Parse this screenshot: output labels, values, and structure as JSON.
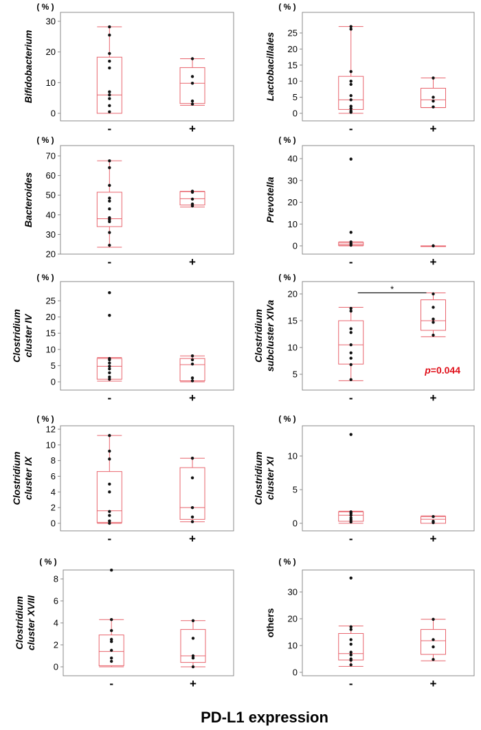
{
  "figure": {
    "xlabel": "PD-L1 expression",
    "categories": [
      "-",
      "+"
    ]
  },
  "colors": {
    "box": "#e8636c",
    "point": "#111111",
    "axis": "#888888",
    "significance": "#e0101a"
  },
  "chart_data": [
    {
      "type": "box",
      "panel": "bifidobacterium",
      "ylabel": "Bifidobacterium",
      "italic": true,
      "unit": "( % )",
      "ylim": [
        0,
        30
      ],
      "yticks": [
        0,
        10,
        20,
        30
      ],
      "groups": [
        {
          "category": "-",
          "points": [
            28.2,
            25.5,
            19.5,
            17.0,
            14.8,
            7.0,
            6.0,
            4.8,
            2.5,
            0.5
          ],
          "min": 0,
          "q1": 0,
          "median": 6.0,
          "q3": 18.3,
          "max": 28.2
        },
        {
          "category": "+",
          "points": [
            17.8,
            12.0,
            9.8,
            4.0,
            3.0
          ],
          "min": 2.6,
          "q1": 3.2,
          "median": 9.8,
          "q3": 14.9,
          "max": 17.8
        }
      ]
    },
    {
      "type": "box",
      "panel": "lactobacillales",
      "ylabel": "Lactobacillales",
      "italic": true,
      "unit": "( % )",
      "ylim": [
        0,
        28
      ],
      "yticks": [
        0,
        5,
        10,
        15,
        20,
        25
      ],
      "groups": [
        {
          "category": "-",
          "points": [
            27.0,
            26.2,
            13.0,
            10.0,
            9.0,
            5.5,
            4.2,
            2.2,
            1.5,
            0.7,
            0.3
          ],
          "min": 0,
          "q1": 1.2,
          "median": 4.2,
          "q3": 11.5,
          "max": 27.0
        },
        {
          "category": "+",
          "points": [
            11.0,
            5.0,
            3.8,
            2.0
          ],
          "min": 1.8,
          "q1": 1.8,
          "median": 4.2,
          "q3": 7.8,
          "max": 11.0
        }
      ]
    },
    {
      "type": "box",
      "panel": "bacteroides",
      "ylabel": "Bacteroides",
      "italic": true,
      "unit": "( % )",
      "ylim": [
        20,
        70
      ],
      "yticks": [
        20,
        30,
        40,
        50,
        60,
        70
      ],
      "groups": [
        {
          "category": "-",
          "points": [
            67.5,
            64.0,
            55.0,
            48.5,
            47.0,
            43.0,
            38.5,
            37.5,
            36.5,
            31.0,
            24.5
          ],
          "min": 23.5,
          "q1": 34.0,
          "median": 38.0,
          "q3": 51.5,
          "max": 67.5
        },
        {
          "category": "+",
          "points": [
            52.0,
            51.5,
            48.0,
            45.5,
            44.5
          ],
          "min": 44.0,
          "q1": 45.0,
          "median": 48.2,
          "q3": 51.8,
          "max": 52.0
        }
      ]
    },
    {
      "type": "box",
      "panel": "prevotella",
      "ylabel": "Prevotella",
      "italic": true,
      "unit": "( % )",
      "ylim": [
        0,
        42
      ],
      "yticks": [
        0,
        10,
        20,
        30,
        40
      ],
      "groups": [
        {
          "category": "-",
          "points": [
            39.8,
            6.2,
            1.8,
            1.0,
            0.3
          ],
          "min": 0,
          "q1": 0.2,
          "median": 0.8,
          "q3": 1.6,
          "max": 1.8
        },
        {
          "category": "+",
          "points": [
            0.0,
            0.0
          ],
          "min": 0,
          "q1": 0,
          "median": 0,
          "q3": 0,
          "max": 0
        }
      ]
    },
    {
      "type": "box",
      "panel": "clostridium-cluster-iv",
      "ylabel": "Clostridium cluster IV",
      "ylabel_lines": [
        "Clostridium",
        "cluster IV"
      ],
      "italic": true,
      "unit": "( % )",
      "ylim": [
        0,
        28
      ],
      "yticks": [
        0,
        5,
        10,
        15,
        20,
        25
      ],
      "groups": [
        {
          "category": "-",
          "points": [
            27.5,
            20.5,
            7.2,
            6.8,
            5.8,
            4.8,
            4.0,
            2.8,
            1.5,
            0.8
          ],
          "min": 0.2,
          "q1": 0.8,
          "median": 4.8,
          "q3": 7.2,
          "max": 7.5
        },
        {
          "category": "+",
          "points": [
            8.0,
            6.8,
            5.5,
            1.2,
            0.3
          ],
          "min": 0,
          "q1": 0.3,
          "median": 5.3,
          "q3": 7.2,
          "max": 8.0
        }
      ]
    },
    {
      "type": "box",
      "panel": "clostridium-subcluster-xiva",
      "ylabel": "Clostridium subcluster XIVa",
      "ylabel_lines": [
        "Clostridium",
        "subcluster XIVa"
      ],
      "italic": true,
      "unit": "( % )",
      "ylim": [
        3,
        21
      ],
      "yticks": [
        5,
        10,
        15,
        20
      ],
      "significance": {
        "marker": "*",
        "p_label": "p=0.044",
        "p_prefix": "p",
        "p_suffix": "=0.044"
      },
      "groups": [
        {
          "category": "-",
          "points": [
            17.3,
            16.8,
            13.5,
            12.8,
            10.5,
            9.0,
            8.0,
            6.8,
            4.0
          ],
          "min": 3.8,
          "q1": 6.9,
          "median": 10.5,
          "q3": 15.0,
          "max": 17.5
        },
        {
          "category": "+",
          "points": [
            20.0,
            17.5,
            15.3,
            14.7,
            12.3
          ],
          "min": 12.0,
          "q1": 13.2,
          "median": 15.0,
          "q3": 18.9,
          "max": 20.2
        }
      ]
    },
    {
      "type": "box",
      "panel": "clostridium-cluster-ix",
      "ylabel": "Clostridium cluster IX",
      "ylabel_lines": [
        "Clostridium",
        "cluster IX"
      ],
      "italic": true,
      "unit": "( % )",
      "ylim": [
        -0.5,
        12
      ],
      "yticks": [
        0,
        2,
        4,
        6,
        8,
        10,
        12
      ],
      "groups": [
        {
          "category": "-",
          "points": [
            11.2,
            9.2,
            8.2,
            5.0,
            4.0,
            1.5,
            1.0,
            0.3,
            0.0
          ],
          "min": 0,
          "q1": 0.1,
          "median": 1.6,
          "q3": 6.6,
          "max": 11.2
        },
        {
          "category": "+",
          "points": [
            8.3,
            5.8,
            2.0,
            0.8,
            0.2
          ],
          "min": 0.2,
          "q1": 0.5,
          "median": 2.0,
          "q3": 7.1,
          "max": 8.3
        }
      ]
    },
    {
      "type": "box",
      "panel": "clostridium-cluster-xi",
      "ylabel": "Clostridium cluster XI",
      "ylabel_lines": [
        "Clostridium",
        "cluster XI"
      ],
      "italic": true,
      "unit": "( % )",
      "ylim": [
        -0.5,
        14
      ],
      "yticks": [
        0,
        5,
        10
      ],
      "groups": [
        {
          "category": "-",
          "points": [
            13.2,
            1.7,
            1.5,
            1.2,
            0.8,
            0.5,
            0.2
          ],
          "min": 0,
          "q1": 0.3,
          "median": 1.2,
          "q3": 1.7,
          "max": 1.8
        },
        {
          "category": "+",
          "points": [
            1.0,
            0.3,
            0.1
          ],
          "min": 0,
          "q1": 0.0,
          "median": 0.6,
          "q3": 1.0,
          "max": 1.1
        }
      ]
    },
    {
      "type": "box",
      "panel": "clostridium-cluster-xviii",
      "ylabel": "Clostridium cluster XVIII",
      "ylabel_lines": [
        "Clostridium",
        "cluster XVIII"
      ],
      "italic": true,
      "unit": "( % )",
      "ylim": [
        -0.3,
        10
      ],
      "yticks": [
        0,
        2,
        4,
        6,
        8
      ],
      "groups": [
        {
          "category": "-",
          "points": [
            8.8,
            4.3,
            3.3,
            2.5,
            2.3,
            1.5,
            0.8,
            0.5
          ],
          "min": 0,
          "q1": 0.1,
          "median": 1.4,
          "q3": 2.9,
          "max": 4.3
        },
        {
          "category": "+",
          "points": [
            4.2,
            2.6,
            1.0,
            0.8,
            0.0
          ],
          "min": 0,
          "q1": 0.4,
          "median": 1.0,
          "q3": 3.4,
          "max": 4.2
        }
      ]
    },
    {
      "type": "box",
      "panel": "others",
      "ylabel": "others",
      "italic": false,
      "unit": "( % )",
      "ylim": [
        0,
        37
      ],
      "yticks": [
        0,
        10,
        20,
        30
      ],
      "groups": [
        {
          "category": "-",
          "points": [
            35.2,
            17.0,
            16.0,
            12.2,
            10.5,
            7.5,
            6.5,
            5.0,
            4.5,
            2.8
          ],
          "min": 2.2,
          "q1": 4.6,
          "median": 7.0,
          "q3": 14.5,
          "max": 17.3
        },
        {
          "category": "+",
          "points": [
            19.8,
            12.2,
            9.5,
            4.8
          ],
          "min": 4.3,
          "q1": 6.7,
          "median": 11.8,
          "q3": 16.0,
          "max": 19.8
        }
      ]
    }
  ]
}
